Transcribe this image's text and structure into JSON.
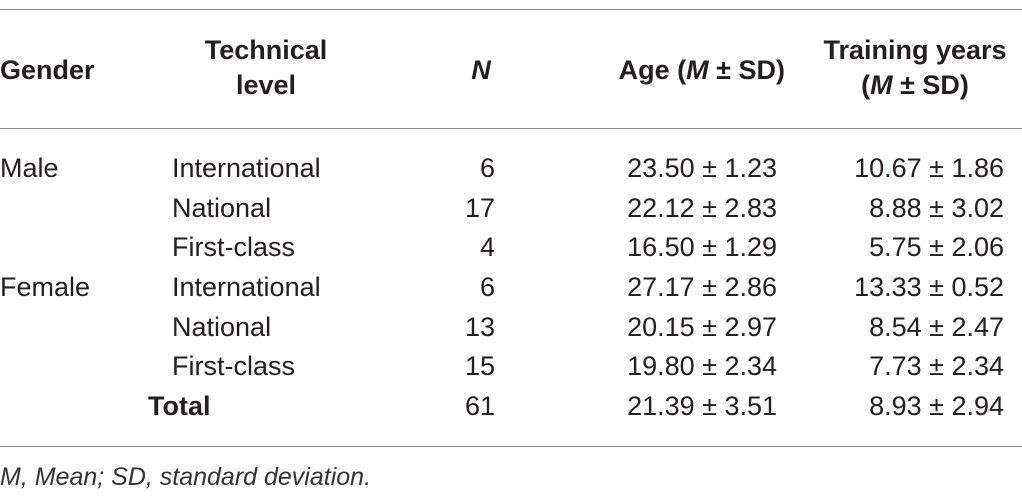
{
  "table": {
    "headers": {
      "gender": "Gender",
      "level_line1": "Technical",
      "level_line2": "level",
      "n": "N",
      "age_prefix": "Age (",
      "age_m": "M",
      "age_suffix": " ± SD)",
      "train_line1": "Training years",
      "train_prefix": "(",
      "train_m": "M",
      "train_suffix": " ± SD)"
    },
    "rows": [
      {
        "gender": "Male",
        "level": "International",
        "n": "6",
        "age": "23.50 ± 1.23",
        "training": "10.67 ± 1.86"
      },
      {
        "gender": "",
        "level": "National",
        "n": "17",
        "age": "22.12 ± 2.83",
        "training": "8.88 ± 3.02"
      },
      {
        "gender": "",
        "level": "First-class",
        "n": "4",
        "age": "16.50 ± 1.29",
        "training": "5.75 ± 2.06"
      },
      {
        "gender": "Female",
        "level": "International",
        "n": "6",
        "age": "27.17 ± 2.86",
        "training": "13.33 ± 0.52"
      },
      {
        "gender": "",
        "level": "National",
        "n": "13",
        "age": "20.15 ± 2.97",
        "training": "8.54 ± 2.47"
      },
      {
        "gender": "",
        "level": "First-class",
        "n": "15",
        "age": "19.80 ± 2.34",
        "training": "7.73 ± 2.34"
      },
      {
        "gender": "",
        "level": "Total",
        "n": "61",
        "age": "21.39 ± 3.51",
        "training": "8.93 ± 2.94"
      }
    ],
    "footnote": "M, Mean; SD, standard deviation."
  }
}
